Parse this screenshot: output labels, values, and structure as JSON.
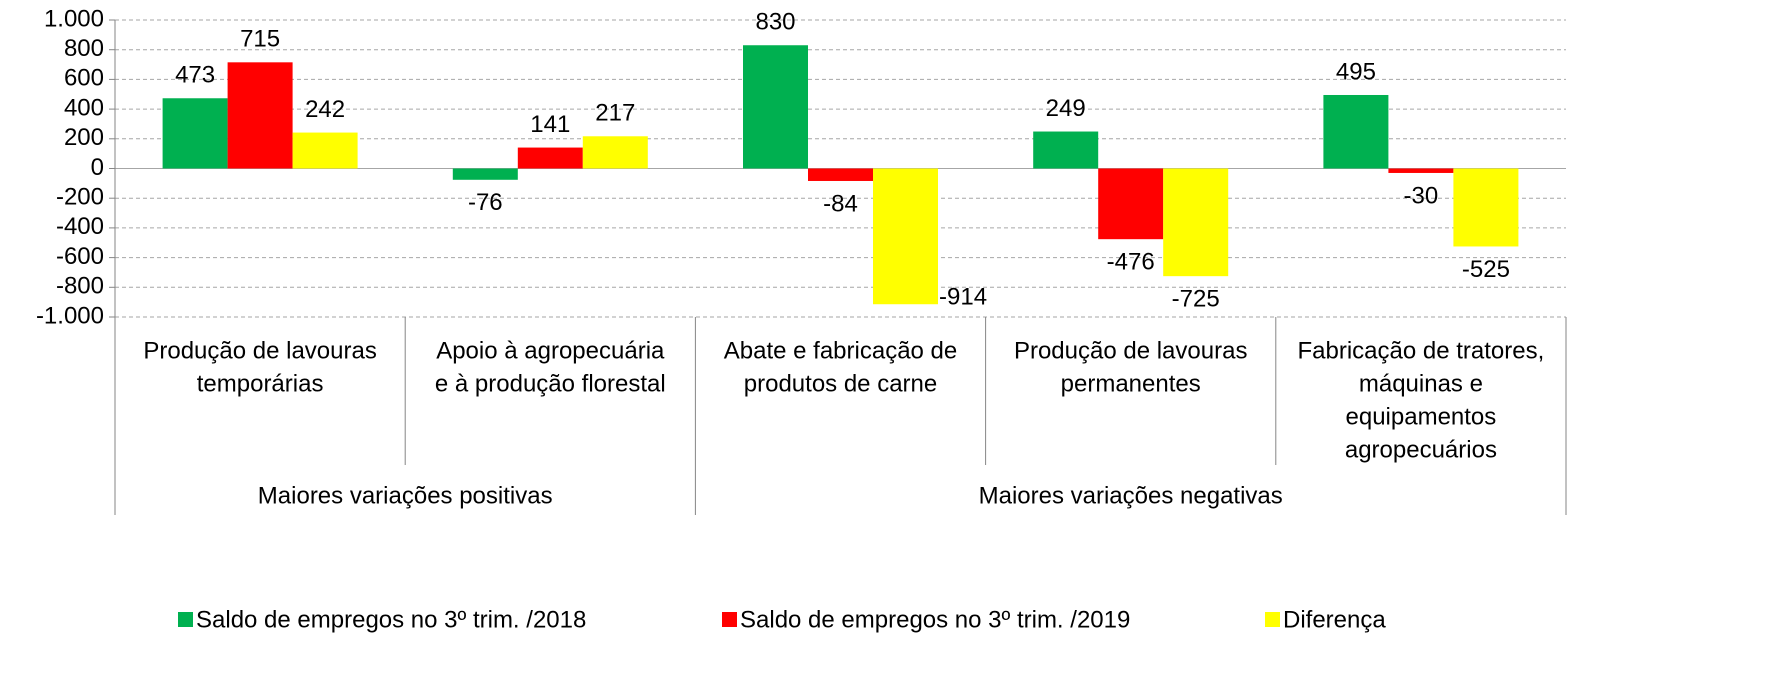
{
  "chart_data": {
    "type": "bar",
    "categories": [
      [
        "Produção de lavouras",
        "temporárias"
      ],
      [
        "Apoio à agropecuária",
        "e à produção florestal"
      ],
      [
        "Abate e fabricação de",
        "produtos de carne"
      ],
      [
        "Produção de lavouras",
        "permanentes"
      ],
      [
        "Fabricação de tratores,",
        "máquinas e",
        "equipamentos",
        "agropecuários"
      ]
    ],
    "groups": [
      "Maiores variações positivas",
      "Maiores variações positivas",
      "Maiores variações negativas",
      "Maiores variações negativas",
      "Maiores variações negativas"
    ],
    "series": [
      {
        "name": "Saldo de empregos no 3º trim. /2018",
        "color": "#00b050",
        "values": [
          473,
          -76,
          830,
          249,
          495
        ]
      },
      {
        "name": "Saldo de empregos no 3º trim. /2019",
        "color": "#ff0000",
        "values": [
          715,
          141,
          -84,
          -476,
          -30
        ]
      },
      {
        "name": "Diferença",
        "color": "#ffff00",
        "values": [
          242,
          217,
          -914,
          -725,
          -525
        ]
      }
    ],
    "ylim": [
      -1000,
      1000
    ],
    "yticks": [
      {
        "value": -1000,
        "label": "-1.000"
      },
      -800,
      -600,
      -400,
      -200,
      0,
      200,
      400,
      600,
      800,
      {
        "value": 1000,
        "label": "1.000"
      }
    ],
    "grid": true,
    "legend": "bottom"
  }
}
